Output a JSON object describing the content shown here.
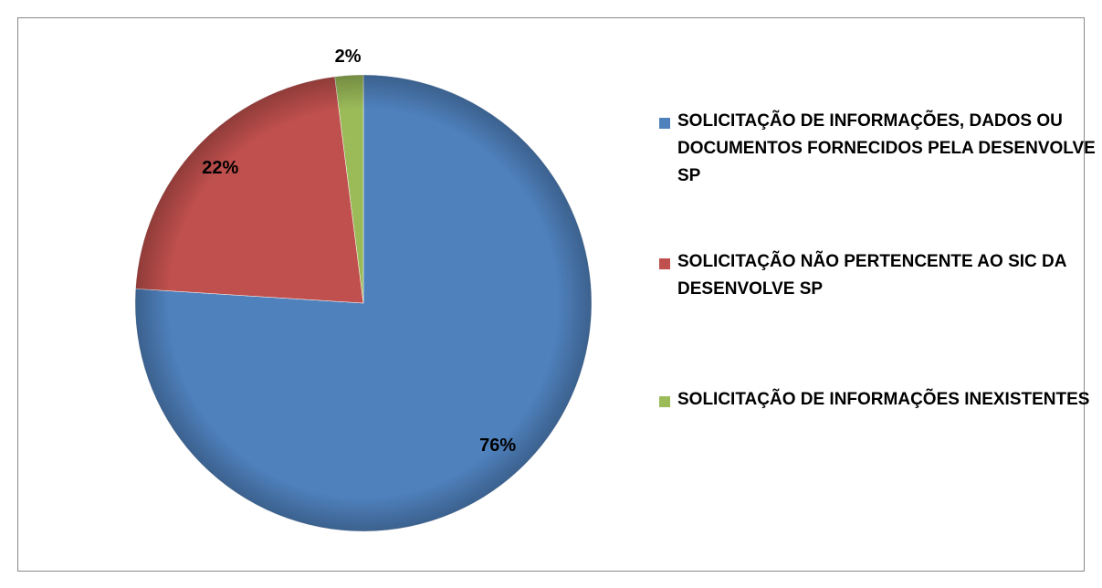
{
  "chart_data": {
    "type": "pie",
    "categories": [
      "SOLICITAÇÃO DE INFORMAÇÕES, DADOS OU DOCUMENTOS FORNECIDOS PELA DESENVOLVE SP",
      "SOLICITAÇÃO NÃO PERTENCENTE AO SIC DA DESENVOLVE SP",
      "SOLICITAÇÃO DE INFORMAÇÕES INEXISTENTES"
    ],
    "values": [
      76,
      22,
      2
    ],
    "value_labels": [
      "76%",
      "22%",
      "2%"
    ],
    "colors": [
      "#4f81bd",
      "#c0504d",
      "#9bbb59"
    ],
    "legend": "right"
  }
}
